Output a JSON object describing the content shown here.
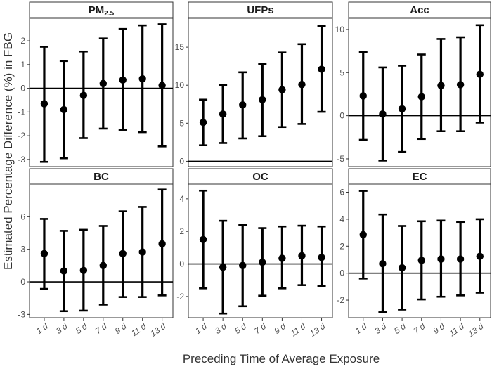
{
  "y_axis_title": "Estimated Percentage Difference (%) in FBG",
  "x_axis_title": "Preceding Time of Average Exposure",
  "chart_data": [
    {
      "type": "errorbar",
      "title": "PM",
      "title_subscript": "2.5",
      "categories": [
        "1 d",
        "3 d",
        "5 d",
        "7 d",
        "9 d",
        "11 d",
        "13 d"
      ],
      "estimate": [
        -0.65,
        -0.9,
        -0.3,
        0.2,
        0.35,
        0.4,
        0.12
      ],
      "lower": [
        -3.1,
        -2.95,
        -2.1,
        -1.7,
        -1.75,
        -1.85,
        -2.45
      ],
      "upper": [
        1.75,
        1.15,
        1.55,
        2.1,
        2.5,
        2.65,
        2.7
      ],
      "ylim": [
        -3.3,
        2.95
      ],
      "yticks": [
        -3,
        -2,
        -1,
        0,
        1,
        2
      ],
      "reference_line": 0
    },
    {
      "type": "errorbar",
      "title": "UFPs",
      "title_subscript": "",
      "categories": [
        "1 d",
        "3 d",
        "5 d",
        "7 d",
        "9 d",
        "11 d",
        "13 d"
      ],
      "estimate": [
        5.1,
        6.2,
        7.4,
        8.1,
        9.4,
        10.1,
        12.1
      ],
      "lower": [
        2.1,
        2.4,
        3.0,
        3.3,
        4.5,
        4.9,
        6.5
      ],
      "upper": [
        8.1,
        10.0,
        11.7,
        12.8,
        14.3,
        15.4,
        17.8
      ],
      "ylim": [
        -0.7,
        18.8
      ],
      "yticks": [
        0,
        5,
        10,
        15
      ],
      "reference_line": 0
    },
    {
      "type": "errorbar",
      "title": "Acc",
      "title_subscript": "",
      "categories": [
        "1 d",
        "3 d",
        "5 d",
        "7 d",
        "9 d",
        "11 d",
        "13 d"
      ],
      "estimate": [
        2.3,
        0.2,
        0.8,
        2.2,
        3.5,
        3.6,
        4.8
      ],
      "lower": [
        -2.8,
        -5.2,
        -4.2,
        -2.7,
        -1.8,
        -1.8,
        -0.8
      ],
      "upper": [
        7.4,
        5.6,
        5.8,
        7.1,
        8.9,
        9.1,
        10.5
      ],
      "ylim": [
        -5.9,
        11.3
      ],
      "yticks": [
        -5,
        0,
        5,
        10
      ],
      "reference_line": 0
    },
    {
      "type": "errorbar",
      "title": "BC",
      "title_subscript": "",
      "categories": [
        "1 d",
        "3 d",
        "5 d",
        "7 d",
        "9 d",
        "11 d",
        "13 d"
      ],
      "estimate": [
        2.6,
        1.0,
        1.05,
        1.5,
        2.6,
        2.75,
        3.5
      ],
      "lower": [
        -0.65,
        -2.7,
        -2.65,
        -2.1,
        -1.4,
        -1.4,
        -1.25
      ],
      "upper": [
        5.8,
        4.7,
        4.8,
        5.15,
        6.5,
        6.9,
        8.5
      ],
      "ylim": [
        -3.3,
        9.0
      ],
      "yticks": [
        -3,
        0,
        3,
        6
      ],
      "reference_line": 0
    },
    {
      "type": "errorbar",
      "title": "OC",
      "title_subscript": "",
      "categories": [
        "1 d",
        "3 d",
        "5 d",
        "7 d",
        "9 d",
        "11 d",
        "13 d"
      ],
      "estimate": [
        1.5,
        -0.2,
        -0.1,
        0.1,
        0.35,
        0.5,
        0.4
      ],
      "lower": [
        -1.5,
        -3.05,
        -2.6,
        -1.95,
        -1.5,
        -1.3,
        -1.35
      ],
      "upper": [
        4.5,
        2.65,
        2.4,
        2.2,
        2.3,
        2.35,
        2.3
      ],
      "ylim": [
        -3.3,
        4.9
      ],
      "yticks": [
        -2,
        0,
        2,
        4
      ],
      "reference_line": 0
    },
    {
      "type": "errorbar",
      "title": "EC",
      "title_subscript": "",
      "categories": [
        "1 d",
        "3 d",
        "5 d",
        "7 d",
        "9 d",
        "11 d",
        "13 d"
      ],
      "estimate": [
        2.85,
        0.7,
        0.4,
        0.95,
        1.05,
        1.05,
        1.25
      ],
      "lower": [
        -0.4,
        -2.9,
        -2.7,
        -1.95,
        -1.75,
        -1.65,
        -1.45
      ],
      "upper": [
        6.1,
        4.35,
        3.5,
        3.85,
        3.9,
        3.8,
        4.0
      ],
      "ylim": [
        -3.3,
        6.6
      ],
      "yticks": [
        -2,
        0,
        2,
        4,
        6
      ],
      "reference_line": 0
    }
  ]
}
